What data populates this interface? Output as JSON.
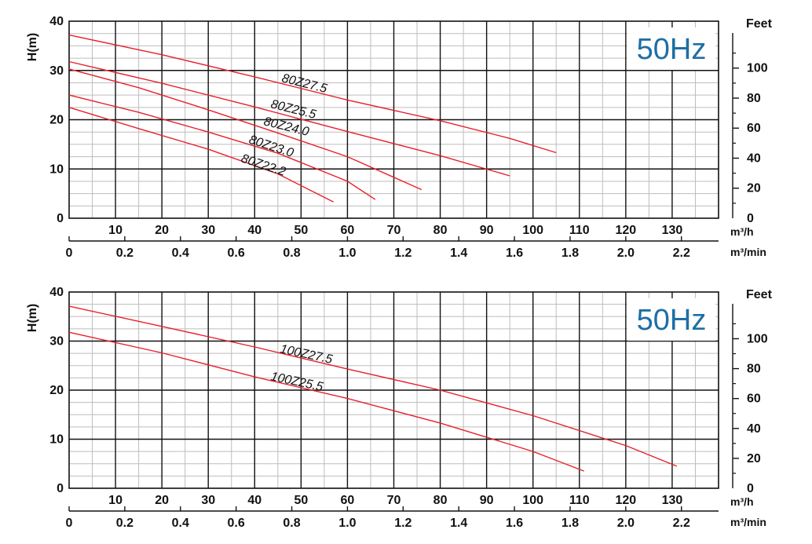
{
  "chart_data": [
    {
      "type": "line",
      "frequency_badge": "50Hz",
      "ylabel": "H(m)",
      "ylabel_right": "Feet",
      "xlabel_flow_h": "m³/h",
      "xlabel_flow_min": "m³/min",
      "xlim": [
        0,
        140
      ],
      "ylim": [
        0,
        40
      ],
      "y_ticks": [
        "0",
        "10",
        "20",
        "30",
        "40"
      ],
      "x_ticks_h": [
        "10",
        "20",
        "30",
        "40",
        "50",
        "60",
        "70",
        "80",
        "90",
        "100",
        "110",
        "120",
        "130"
      ],
      "x_ticks_min": [
        "0",
        "0.2",
        "0.4",
        "0.6",
        "0.8",
        "1.0",
        "1.2",
        "1.4",
        "1.6",
        "1.8",
        "2.0",
        "2.2"
      ],
      "feet_ticks": [
        "0",
        "20",
        "40",
        "60",
        "80",
        "100"
      ],
      "grid": true,
      "series": [
        {
          "name": "80Z27.5",
          "color": "#e8202a",
          "x": [
            0,
            20,
            40,
            60,
            80,
            95,
            105
          ],
          "y": [
            37.2,
            33.2,
            28.7,
            24.0,
            19.8,
            16.2,
            13.3
          ]
        },
        {
          "name": "80Z25.5",
          "color": "#e8202a",
          "x": [
            0,
            20,
            40,
            60,
            80,
            95
          ],
          "y": [
            31.8,
            27.4,
            22.6,
            17.6,
            12.7,
            8.6
          ]
        },
        {
          "name": "80Z24.0",
          "color": "#e8202a",
          "x": [
            0,
            15,
            30,
            45,
            60,
            76
          ],
          "y": [
            30.3,
            26.5,
            22.0,
            17.3,
            12.5,
            5.8
          ]
        },
        {
          "name": "80Z23.0",
          "color": "#e8202a",
          "x": [
            0,
            15,
            30,
            45,
            60,
            66
          ],
          "y": [
            25.0,
            21.5,
            17.5,
            13.2,
            7.5,
            3.8
          ]
        },
        {
          "name": "80Z22.2",
          "color": "#e8202a",
          "x": [
            0,
            15,
            30,
            45,
            57
          ],
          "y": [
            22.5,
            18.2,
            14.0,
            9.0,
            3.3
          ]
        }
      ]
    },
    {
      "type": "line",
      "frequency_badge": "50Hz",
      "ylabel": "H(m)",
      "ylabel_right": "Feet",
      "xlabel_flow_h": "m³/h",
      "xlabel_flow_min": "m³/min",
      "xlim": [
        0,
        140
      ],
      "ylim": [
        0,
        40
      ],
      "y_ticks": [
        "0",
        "10",
        "20",
        "30",
        "40"
      ],
      "x_ticks_h": [
        "10",
        "20",
        "30",
        "40",
        "50",
        "60",
        "70",
        "80",
        "90",
        "100",
        "110",
        "120",
        "130"
      ],
      "x_ticks_min": [
        "0",
        "0.2",
        "0.4",
        "0.6",
        "0.8",
        "1.0",
        "1.2",
        "1.4",
        "1.6",
        "1.8",
        "2.0",
        "2.2"
      ],
      "feet_ticks": [
        "0",
        "20",
        "40",
        "60",
        "80",
        "100"
      ],
      "grid": true,
      "series": [
        {
          "name": "100Z27.5",
          "color": "#e8202a",
          "x": [
            0,
            20,
            40,
            60,
            80,
            100,
            120,
            131
          ],
          "y": [
            37.1,
            33.0,
            28.8,
            24.3,
            20.0,
            14.8,
            8.7,
            4.5
          ]
        },
        {
          "name": "100Z25.5",
          "color": "#e8202a",
          "x": [
            0,
            20,
            40,
            60,
            80,
            100,
            111
          ],
          "y": [
            31.8,
            27.6,
            22.7,
            18.3,
            13.3,
            7.5,
            3.5
          ]
        }
      ]
    }
  ]
}
